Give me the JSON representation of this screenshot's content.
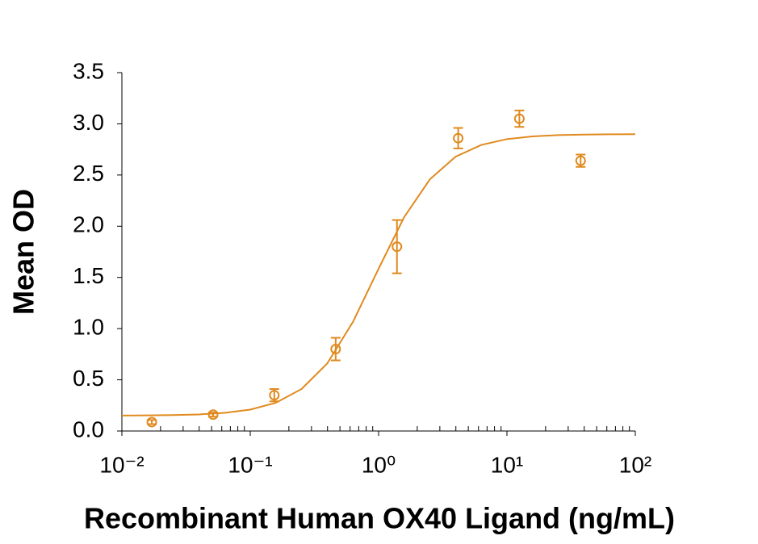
{
  "chart_data": {
    "type": "scatter",
    "x_label": "Recombinant Human OX40 Ligand (ng/mL)",
    "y_label": "Mean OD",
    "x": [
      0.0171,
      0.0514,
      0.154,
      0.463,
      1.39,
      4.17,
      12.5,
      37.5
    ],
    "series": [
      {
        "color": "#e08a1e",
        "values": [
          0.087,
          0.16,
          0.35,
          0.8,
          1.8,
          2.86,
          3.05,
          2.64
        ],
        "errors": [
          0.02,
          0.02,
          0.06,
          0.11,
          0.26,
          0.1,
          0.08,
          0.06
        ]
      }
    ],
    "fit": {
      "color": "#e08a1e",
      "x": [
        0.01,
        0.0158,
        0.0251,
        0.0398,
        0.0631,
        0.1,
        0.158,
        0.251,
        0.398,
        0.631,
        1,
        1.58,
        2.51,
        3.98,
        6.31,
        10,
        15.8,
        25.1,
        39.8,
        63.1,
        100
      ],
      "values": [
        0.151,
        0.153,
        0.156,
        0.162,
        0.177,
        0.209,
        0.275,
        0.41,
        0.66,
        1.065,
        1.585,
        2.088,
        2.458,
        2.679,
        2.794,
        2.851,
        2.877,
        2.89,
        2.895,
        2.898,
        2.899
      ]
    },
    "x_log": true,
    "xlim": [
      0.01,
      100
    ],
    "xticks": [
      {
        "value": 0.01,
        "label": "10⁻²"
      },
      {
        "value": 0.1,
        "label": "10⁻¹"
      },
      {
        "value": 1,
        "label": "10⁰"
      },
      {
        "value": 10,
        "label": "10¹"
      },
      {
        "value": 100,
        "label": "10²"
      }
    ],
    "ylim": [
      0,
      3.5
    ],
    "yticks": [
      {
        "value": 0,
        "label": "0.0"
      },
      0.5,
      {
        "value": 1,
        "label": "1.0"
      },
      1.5,
      {
        "value": 2,
        "label": "2.0"
      },
      2.5,
      {
        "value": 3,
        "label": "3.0"
      },
      3.5
    ]
  }
}
